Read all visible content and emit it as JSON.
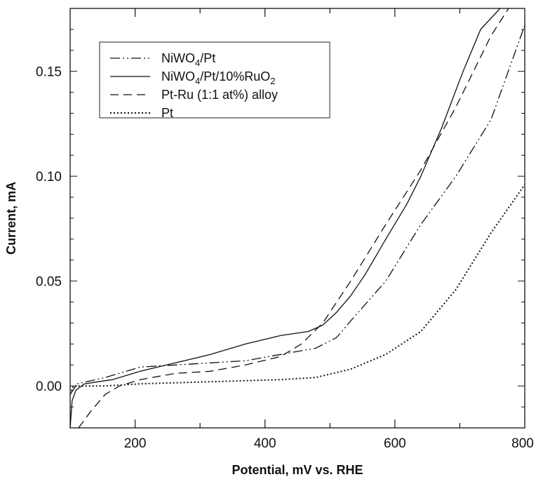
{
  "chart_data": {
    "type": "line",
    "title": "",
    "xlabel": "Potential, mV vs. RHE",
    "ylabel": "Current, mA",
    "xlim": [
      100,
      800
    ],
    "ylim": [
      -0.02,
      0.18
    ],
    "xticks": [
      200,
      400,
      600,
      800
    ],
    "xtick_labels": [
      "200",
      "400",
      "600",
      "800"
    ],
    "yticks": [
      0.0,
      0.05,
      0.1,
      0.15
    ],
    "ytick_labels": [
      "0.00",
      "0.05",
      "0.10",
      "0.15"
    ],
    "grid": false,
    "legend_position": "top-left",
    "series": [
      {
        "name": "NiWO4/Pt",
        "label_parts": [
          "NiWO",
          "4",
          "/Pt"
        ],
        "style": "dash-dot-dot",
        "x": [
          100,
          111,
          154,
          208,
          262,
          316,
          370,
          424,
          478,
          510,
          532,
          586,
          640,
          694,
          748,
          800
        ],
        "y": [
          -0.004,
          0.001,
          0.004,
          0.009,
          0.01,
          0.011,
          0.012,
          0.015,
          0.018,
          0.023,
          0.031,
          0.05,
          0.077,
          0.1,
          0.127,
          0.172
        ]
      },
      {
        "name": "NiWO4/Pt/10%RuO2",
        "label_parts": [
          "NiWO",
          "4",
          "/Pt/10%RuO",
          "2"
        ],
        "style": "solid",
        "x": [
          100,
          103,
          109,
          122,
          165,
          208,
          262,
          316,
          370,
          424,
          467,
          489,
          510,
          532,
          554,
          586,
          619,
          640,
          672,
          705,
          732,
          762
        ],
        "y": [
          -0.02,
          -0.007,
          -0.002,
          0.001,
          0.003,
          0.007,
          0.011,
          0.015,
          0.02,
          0.024,
          0.026,
          0.029,
          0.035,
          0.043,
          0.053,
          0.07,
          0.087,
          0.1,
          0.123,
          0.15,
          0.17,
          0.18
        ]
      },
      {
        "name": "Pt-Ru (1:1 at%) alloy",
        "label_parts": [
          "Pt-Ru (1:1 at%) alloy"
        ],
        "style": "dashed",
        "x": [
          113,
          132,
          154,
          176,
          208,
          262,
          316,
          370,
          424,
          456,
          489,
          532,
          586,
          640,
          694,
          748,
          775
        ],
        "y": [
          -0.02,
          -0.012,
          -0.004,
          0.0,
          0.003,
          0.006,
          0.007,
          0.01,
          0.014,
          0.02,
          0.03,
          0.05,
          0.077,
          0.103,
          0.133,
          0.167,
          0.18
        ]
      },
      {
        "name": "Pt",
        "label_parts": [
          "Pt"
        ],
        "style": "dotted",
        "x": [
          100,
          105,
          154,
          208,
          316,
          424,
          478,
          532,
          586,
          640,
          694,
          748,
          800
        ],
        "y": [
          -0.004,
          0.0,
          0.0,
          0.001,
          0.002,
          0.003,
          0.004,
          0.008,
          0.015,
          0.026,
          0.046,
          0.073,
          0.096
        ]
      }
    ]
  }
}
